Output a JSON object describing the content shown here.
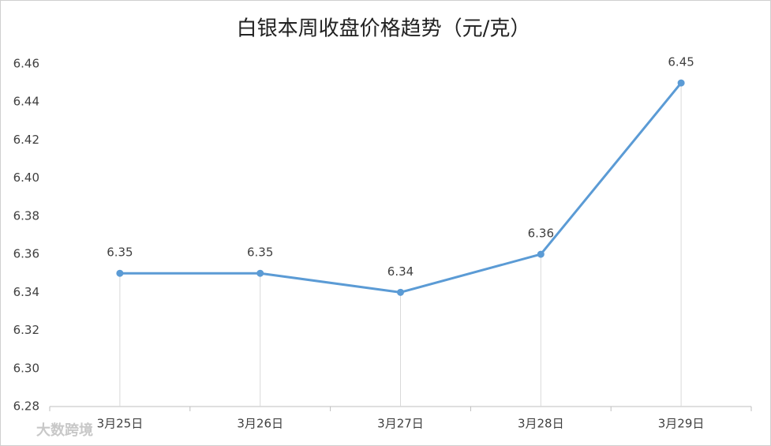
{
  "chart_data": {
    "type": "line",
    "title": "白银本周收盘价格趋势（元/克）",
    "categories": [
      "3月25日",
      "3月26日",
      "3月27日",
      "3月28日",
      "3月29日"
    ],
    "values": [
      6.35,
      6.35,
      6.34,
      6.36,
      6.45
    ],
    "color": "#5b9bd5",
    "ylim": [
      6.28,
      6.46
    ],
    "yticks": [
      6.28,
      {
        "value": 6.3,
        "label": "6.30"
      },
      6.32,
      6.34,
      6.36,
      6.38,
      {
        "value": 6.4,
        "label": "6.40"
      },
      6.42,
      6.44,
      6.46
    ],
    "drop_lines": true,
    "data_labels": true,
    "watermark": "大数跨境"
  }
}
